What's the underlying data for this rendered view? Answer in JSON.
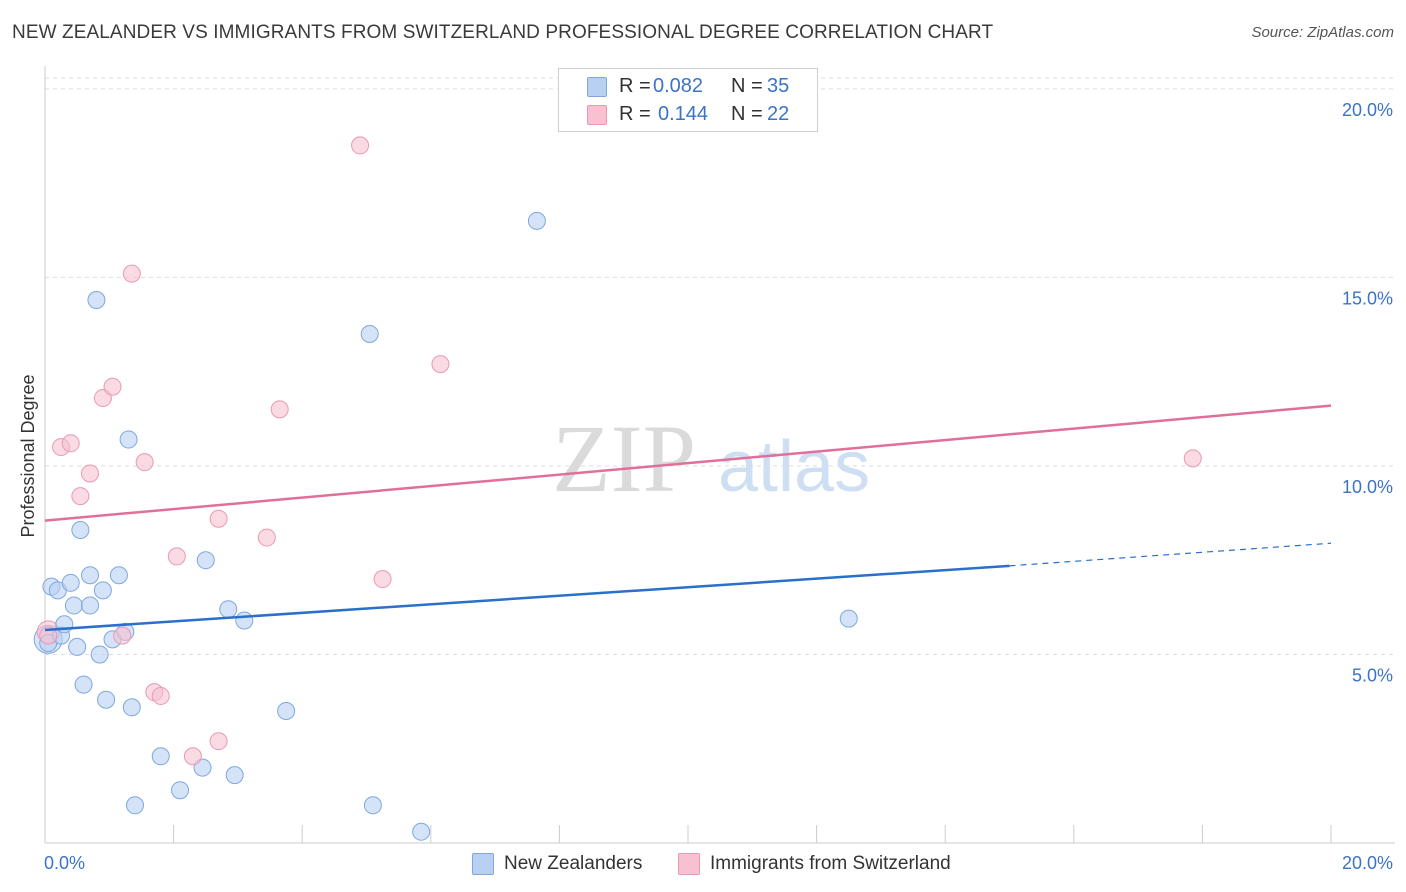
{
  "title": "NEW ZEALANDER VS IMMIGRANTS FROM SWITZERLAND PROFESSIONAL DEGREE CORRELATION CHART",
  "source": "Source: ZipAtlas.com",
  "legend": {
    "rows": [
      {
        "r_label": "R =",
        "r_value": "0.082",
        "n_label": "N =",
        "n_value": "35"
      },
      {
        "r_label": "R =",
        "r_value": "0.144",
        "n_label": "N =",
        "n_value": "22"
      }
    ]
  },
  "bottom_legend": {
    "series1": "New Zealanders",
    "series2": "Immigrants from Switzerland"
  },
  "watermark": {
    "zip": "ZIP",
    "atlas": "atlas"
  },
  "colors": {
    "blue_fill": "#b8d1f3",
    "blue_stroke": "#7fa7dd",
    "blue_line": "#2a6fcb",
    "pink_fill": "#f7c1d1",
    "pink_stroke": "#ea99b3",
    "pink_line": "#e0709a",
    "tick_label": "#3b73c8",
    "grid": "#dddddd"
  },
  "chart_data": {
    "type": "scatter",
    "title": "NEW ZEALANDER VS IMMIGRANTS FROM SWITZERLAND PROFESSIONAL DEGREE CORRELATION CHART",
    "xlabel": "",
    "ylabel": "Professional Degree",
    "xlim": [
      0,
      20
    ],
    "ylim": [
      0,
      20.5
    ],
    "x_tick_labels": [
      "0.0%",
      "20.0%"
    ],
    "y_ticks": [
      5,
      10,
      15,
      20
    ],
    "y_tick_labels": [
      "5.0%",
      "10.0%",
      "15.0%",
      "20.0%"
    ],
    "grid": true,
    "legend_position": "top-center",
    "series": [
      {
        "name": "New Zealanders",
        "color": "#b8d1f3",
        "R": 0.082,
        "N": 35,
        "trend": {
          "x0": 0,
          "y0": 5.65,
          "x1": 15.0,
          "y1": 7.35,
          "dashed_to": 20,
          "dashed_y": 7.95
        },
        "points": [
          [
            0.05,
            5.3
          ],
          [
            0.1,
            6.8
          ],
          [
            0.2,
            6.7
          ],
          [
            0.25,
            5.5
          ],
          [
            0.3,
            5.8
          ],
          [
            0.4,
            6.9
          ],
          [
            0.45,
            6.3
          ],
          [
            0.5,
            5.2
          ],
          [
            0.55,
            8.3
          ],
          [
            0.6,
            4.2
          ],
          [
            0.7,
            6.3
          ],
          [
            0.7,
            7.1
          ],
          [
            0.8,
            14.4
          ],
          [
            0.85,
            5.0
          ],
          [
            0.9,
            6.7
          ],
          [
            0.95,
            3.8
          ],
          [
            1.05,
            5.4
          ],
          [
            1.15,
            7.1
          ],
          [
            1.25,
            5.6
          ],
          [
            1.3,
            10.7
          ],
          [
            1.35,
            3.6
          ],
          [
            1.4,
            1.0
          ],
          [
            1.8,
            2.3
          ],
          [
            2.1,
            1.4
          ],
          [
            2.45,
            2.0
          ],
          [
            2.5,
            7.5
          ],
          [
            2.85,
            6.2
          ],
          [
            2.95,
            1.8
          ],
          [
            3.1,
            5.9
          ],
          [
            3.75,
            3.5
          ],
          [
            5.05,
            13.5
          ],
          [
            5.1,
            1.0
          ],
          [
            5.85,
            0.3
          ],
          [
            7.65,
            16.5
          ],
          [
            12.5,
            5.95
          ]
        ]
      },
      {
        "name": "Immigrants from Switzerland",
        "color": "#f7c1d1",
        "R": 0.144,
        "N": 22,
        "trend": {
          "x0": 0,
          "y0": 8.55,
          "x1": 20,
          "y1": 11.6
        },
        "points": [
          [
            0.05,
            5.5
          ],
          [
            0.25,
            10.5
          ],
          [
            0.4,
            10.6
          ],
          [
            0.55,
            9.2
          ],
          [
            0.7,
            9.8
          ],
          [
            0.9,
            11.8
          ],
          [
            1.05,
            12.1
          ],
          [
            1.2,
            5.5
          ],
          [
            1.35,
            15.1
          ],
          [
            1.55,
            10.1
          ],
          [
            1.7,
            4.0
          ],
          [
            1.8,
            3.9
          ],
          [
            2.05,
            7.6
          ],
          [
            2.3,
            2.3
          ],
          [
            2.7,
            2.7
          ],
          [
            2.7,
            8.6
          ],
          [
            3.45,
            8.1
          ],
          [
            3.65,
            11.5
          ],
          [
            4.9,
            18.5
          ],
          [
            5.25,
            7.0
          ],
          [
            6.15,
            12.7
          ],
          [
            17.85,
            10.2
          ]
        ]
      }
    ]
  }
}
